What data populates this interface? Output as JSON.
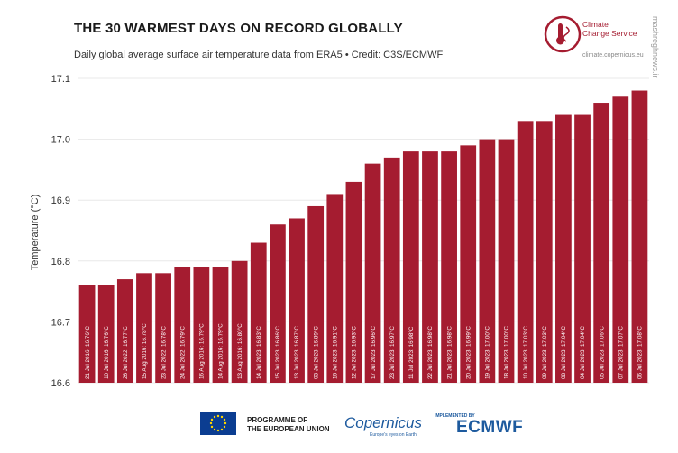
{
  "title": "THE 30 WARMEST DAYS ON RECORD GLOBALLY",
  "subtitle": "Daily global average surface air temperature data from ERA5 • Credit: C3S/ECMWF",
  "c3s": {
    "line1": "Climate",
    "line2": "Change Service",
    "url": "climate.copernicus.eu"
  },
  "watermark": "mashreghnews.ir",
  "footer": {
    "eu_line1": "PROGRAMME OF",
    "eu_line2": "THE EUROPEAN UNION",
    "copernicus": "Copernicus",
    "copernicus_sub": "Europe's eyes on Earth",
    "implemented_by": "IMPLEMENTED BY",
    "ecmwf": "ECMWF"
  },
  "colors": {
    "bar": "#a51c30",
    "grid": "#e8e8e8",
    "logo_blue": "#1d5a9e"
  },
  "chart_data": {
    "type": "bar",
    "title": "THE 30 WARMEST DAYS ON RECORD GLOBALLY",
    "ylabel": "Temperature (°C)",
    "xlabel": "",
    "ylim": [
      16.6,
      17.1
    ],
    "yticks": [
      "16.6",
      "16.7",
      "16.8",
      "16.9",
      "17.0",
      "17.1"
    ],
    "grid": true,
    "categories": [
      "21 Jul 2016: 16.76°C",
      "10 Jul 2016: 16.76°C",
      "26 Jul 2022: 16.77°C",
      "15 Aug 2016: 16.78°C",
      "23 Jul 2022: 16.78°C",
      "24 Jul 2022: 16.79°C",
      "16 Aug 2016: 16.79°C",
      "14 Aug 2016: 16.79°C",
      "13 Aug 2016: 16.80°C",
      "14 Jul 2023: 16.83°C",
      "15 Jul 2023: 16.86°C",
      "13 Jul 2023: 16.87°C",
      "03 Jul 2023: 16.89°C",
      "16 Jul 2023: 16.91°C",
      "12 Jul 2023: 16.93°C",
      "17 Jul 2023: 16.96°C",
      "23 Jul 2023: 16.97°C",
      "11 Jul 2023: 16.98°C",
      "22 Jul 2023: 16.98°C",
      "21 Jul 2023: 16.98°C",
      "20 Jul 2023: 16.99°C",
      "19 Jul 2023: 17.00°C",
      "18 Jul 2023: 17.00°C",
      "10 Jul 2023: 17.03°C",
      "09 Jul 2023: 17.03°C",
      "08 Jul 2023: 17.04°C",
      "04 Jul 2023: 17.04°C",
      "05 Jul 2023: 17.06°C",
      "07 Jul 2023: 17.07°C",
      "06 Jul 2023: 17.08°C"
    ],
    "values": [
      16.76,
      16.76,
      16.77,
      16.78,
      16.78,
      16.79,
      16.79,
      16.79,
      16.8,
      16.83,
      16.86,
      16.87,
      16.89,
      16.91,
      16.93,
      16.96,
      16.97,
      16.98,
      16.98,
      16.98,
      16.99,
      17.0,
      17.0,
      17.03,
      17.03,
      17.04,
      17.04,
      17.06,
      17.07,
      17.08
    ]
  }
}
